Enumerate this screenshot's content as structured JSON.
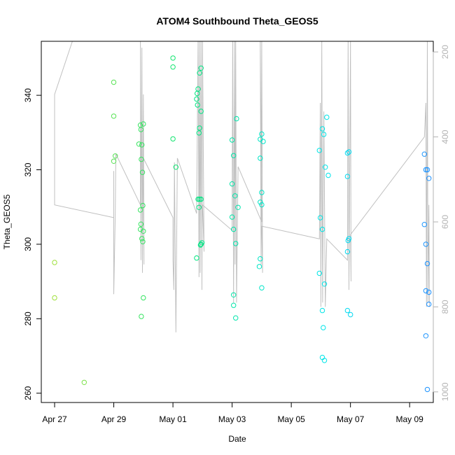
{
  "chart_data": {
    "type": "scatter",
    "title": "ATOM4 Southbound Theta_GEOS5",
    "xlabel": "Date",
    "ylabel": "Theta_GEOS5",
    "x_ticks": [
      "Apr 27",
      "Apr 29",
      "May 01",
      "May 03",
      "May 05",
      "May 07",
      "May 09"
    ],
    "xlim": [
      -0.45,
      12.8
    ],
    "ylim": [
      257.5,
      354.5
    ],
    "y_ticks": [
      260,
      280,
      300,
      320,
      340
    ],
    "right_axis": {
      "label": "",
      "ticks": [
        200,
        400,
        600,
        800,
        1000
      ],
      "ylim": [
        1025,
        175
      ],
      "color": "#b3b3b3"
    },
    "colors": {
      "gradient_start": "#9ee03a",
      "gradient_mid": "#00e676",
      "gradient_cyan": "#00e5ee",
      "gradient_end": "#1e90ff",
      "profile_line": "#c0c0c0"
    },
    "points": [
      [
        0.0,
        295.1
      ],
      [
        0.0,
        285.6
      ],
      [
        1.0,
        262.9
      ],
      [
        2.0,
        343.5
      ],
      [
        2.0,
        334.4
      ],
      [
        2.05,
        323.7
      ],
      [
        2.0,
        322.3
      ],
      [
        2.85,
        326.9
      ],
      [
        2.9,
        332.0
      ],
      [
        2.92,
        330.8
      ],
      [
        2.95,
        326.7
      ],
      [
        2.93,
        322.8
      ],
      [
        2.97,
        319.3
      ],
      [
        3.0,
        332.3
      ],
      [
        2.98,
        310.4
      ],
      [
        2.9,
        309.2
      ],
      [
        2.92,
        305.4
      ],
      [
        2.9,
        304.0
      ],
      [
        3.0,
        303.5
      ],
      [
        2.95,
        301.5
      ],
      [
        2.98,
        300.7
      ],
      [
        3.0,
        285.6
      ],
      [
        2.93,
        280.6
      ],
      [
        4.0,
        350.0
      ],
      [
        4.0,
        347.6
      ],
      [
        4.0,
        328.3
      ],
      [
        4.1,
        320.7
      ],
      [
        4.85,
        341.7
      ],
      [
        4.9,
        346.0
      ],
      [
        4.82,
        340.5
      ],
      [
        4.8,
        339.0
      ],
      [
        4.83,
        337.4
      ],
      [
        4.95,
        347.3
      ],
      [
        4.95,
        335.7
      ],
      [
        4.9,
        331.2
      ],
      [
        4.88,
        329.9
      ],
      [
        4.85,
        312.1
      ],
      [
        4.9,
        312.1
      ],
      [
        4.95,
        312.1
      ],
      [
        4.88,
        309.9
      ],
      [
        4.95,
        300.0
      ],
      [
        4.98,
        300.4
      ],
      [
        4.93,
        299.8
      ],
      [
        4.8,
        296.3
      ],
      [
        6.0,
        328.0
      ],
      [
        6.15,
        333.7
      ],
      [
        6.05,
        323.8
      ],
      [
        6.0,
        316.2
      ],
      [
        6.1,
        313.0
      ],
      [
        6.2,
        309.9
      ],
      [
        6.0,
        307.3
      ],
      [
        6.05,
        304.0
      ],
      [
        6.12,
        300.2
      ],
      [
        6.05,
        286.4
      ],
      [
        6.05,
        283.6
      ],
      [
        6.12,
        280.2
      ],
      [
        7.0,
        329.6
      ],
      [
        6.95,
        328.2
      ],
      [
        7.05,
        327.6
      ],
      [
        6.95,
        323.1
      ],
      [
        7.0,
        313.9
      ],
      [
        6.95,
        311.3
      ],
      [
        7.0,
        310.6
      ],
      [
        6.95,
        296.1
      ],
      [
        6.92,
        294.0
      ],
      [
        7.0,
        288.3
      ],
      [
        8.95,
        325.2
      ],
      [
        9.05,
        331.0
      ],
      [
        9.1,
        329.5
      ],
      [
        9.2,
        334.1
      ],
      [
        9.15,
        320.7
      ],
      [
        9.25,
        318.5
      ],
      [
        8.98,
        307.1
      ],
      [
        9.05,
        304.0
      ],
      [
        8.95,
        292.2
      ],
      [
        9.05,
        282.2
      ],
      [
        9.12,
        289.3
      ],
      [
        9.08,
        277.6
      ],
      [
        9.05,
        269.6
      ],
      [
        9.12,
        268.8
      ],
      [
        9.9,
        324.5
      ],
      [
        9.95,
        324.8
      ],
      [
        9.9,
        318.2
      ],
      [
        9.95,
        301.5
      ],
      [
        9.92,
        301.0
      ],
      [
        9.9,
        298.0
      ],
      [
        9.9,
        282.2
      ],
      [
        10.0,
        281.1
      ],
      [
        12.5,
        324.2
      ],
      [
        12.55,
        320.0
      ],
      [
        12.6,
        320.0
      ],
      [
        12.65,
        317.7
      ],
      [
        12.5,
        305.3
      ],
      [
        12.55,
        300.0
      ],
      [
        12.6,
        294.8
      ],
      [
        12.55,
        287.5
      ],
      [
        12.65,
        287.1
      ],
      [
        12.65,
        283.9
      ],
      [
        12.55,
        275.4
      ],
      [
        12.6,
        261.0
      ]
    ]
  }
}
